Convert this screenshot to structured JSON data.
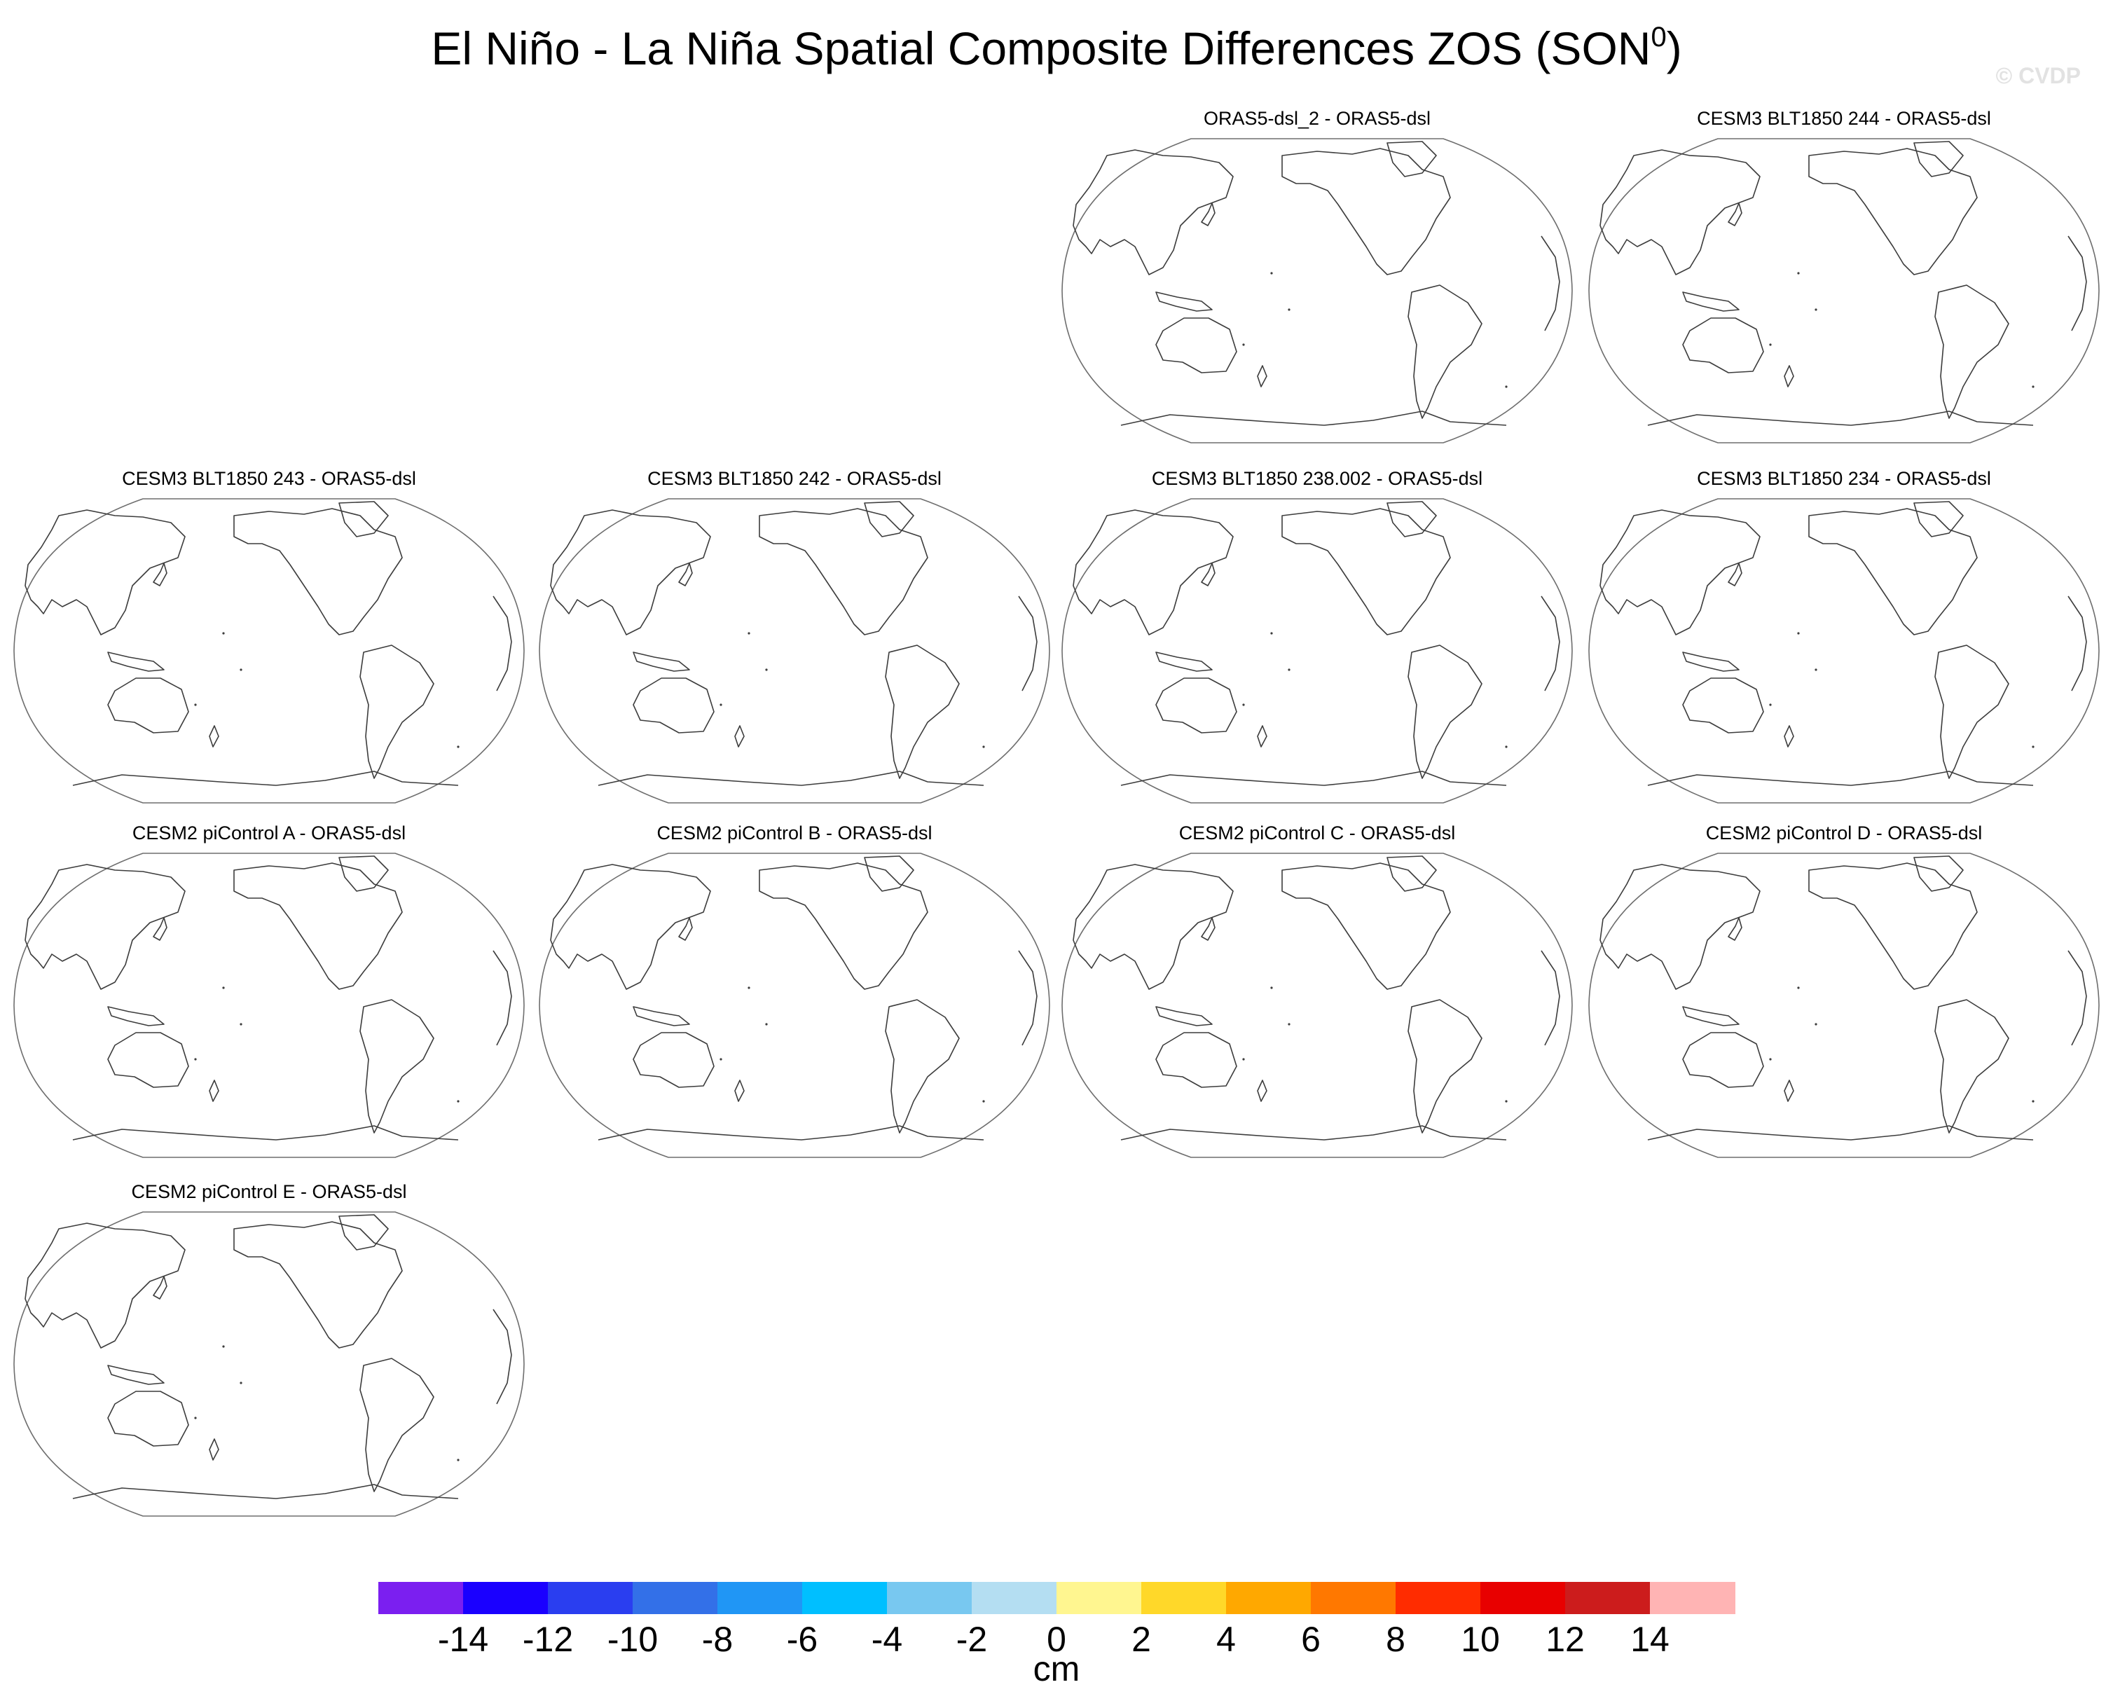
{
  "title_main": "El Niño - La Niña Spatial Composite Differences ZOS (SON",
  "title_sup": "0",
  "title_close": ")",
  "watermark": "© CVDP",
  "panels": [
    {
      "label": "ORAS5-dsl_2 - ORAS5-dsl"
    },
    {
      "label": "CESM3 BLT1850 244 - ORAS5-dsl"
    },
    {
      "label": "CESM3 BLT1850 243 - ORAS5-dsl"
    },
    {
      "label": "CESM3 BLT1850 242 - ORAS5-dsl"
    },
    {
      "label": "CESM3 BLT1850 238.002 - ORAS5-dsl"
    },
    {
      "label": "CESM3 BLT1850 234 - ORAS5-dsl"
    },
    {
      "label": "CESM2 piControl A - ORAS5-dsl"
    },
    {
      "label": "CESM2 piControl B - ORAS5-dsl"
    },
    {
      "label": "CESM2 piControl C - ORAS5-dsl"
    },
    {
      "label": "CESM2 piControl D - ORAS5-dsl"
    },
    {
      "label": "CESM2 piControl E - ORAS5-dsl"
    }
  ],
  "colorbar": {
    "unit": "cm",
    "tick_labels": [
      "-14",
      "-12",
      "-10",
      "-8",
      "-6",
      "-4",
      "-2",
      "0",
      "2",
      "4",
      "6",
      "8",
      "10",
      "12",
      "14"
    ],
    "colors": [
      "#7b1ff0",
      "#1a00ff",
      "#2a3ef0",
      "#3370e8",
      "#2096f5",
      "#00bfff",
      "#78c8f0",
      "#b4def2",
      "#fff690",
      "#ffd829",
      "#ffa800",
      "#ff7800",
      "#ff2c00",
      "#e80000",
      "#cc1c1c",
      "#ffb4b4"
    ]
  },
  "chart_data": {
    "type": "map-panel-grid",
    "title": "El Niño - La Niña Spatial Composite Differences ZOS (SON⁰)",
    "projection": "Robinson-like global ellipse, Pacific-centered",
    "panels": [
      "ORAS5-dsl_2 - ORAS5-dsl",
      "CESM3 BLT1850 244 - ORAS5-dsl",
      "CESM3 BLT1850 243 - ORAS5-dsl",
      "CESM3 BLT1850 242 - ORAS5-dsl",
      "CESM3 BLT1850 238.002 - ORAS5-dsl",
      "CESM3 BLT1850 234 - ORAS5-dsl",
      "CESM2 piControl A - ORAS5-dsl",
      "CESM2 piControl B - ORAS5-dsl",
      "CESM2 piControl C - ORAS5-dsl",
      "CESM2 piControl D - ORAS5-dsl",
      "CESM2 piControl E - ORAS5-dsl"
    ],
    "field_shading": "none visible (maps empty)",
    "colorbar_levels": [
      -14,
      -12,
      -10,
      -8,
      -6,
      -4,
      -2,
      0,
      2,
      4,
      6,
      8,
      10,
      12,
      14
    ],
    "colorbar_unit": "cm",
    "colorbar_open_ended": true
  }
}
